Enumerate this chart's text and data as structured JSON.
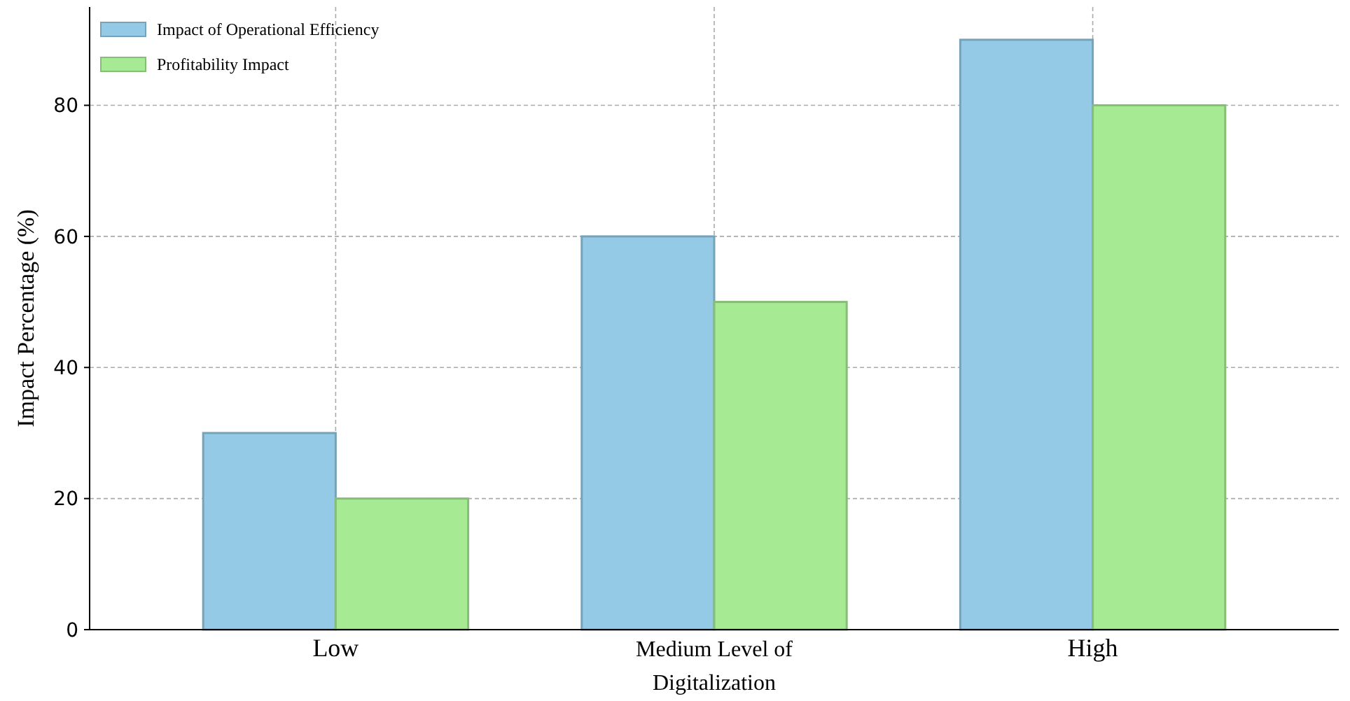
{
  "chart_data": {
    "type": "bar",
    "ylabel": "Impact Percentage (%)",
    "categories": [
      "Low",
      "Medium Level of Digitalization",
      "High"
    ],
    "series": [
      {
        "name": "Impact of Operational Efficiency",
        "color": "#94cae6",
        "values": [
          30,
          60,
          90
        ]
      },
      {
        "name": "Profitability Impact",
        "color": "#a6ea94",
        "values": [
          20,
          50,
          80
        ]
      }
    ],
    "ylim": [
      0,
      95
    ],
    "yticks": [
      0,
      20,
      40,
      60,
      80
    ],
    "grid": true,
    "legend": "top left"
  }
}
